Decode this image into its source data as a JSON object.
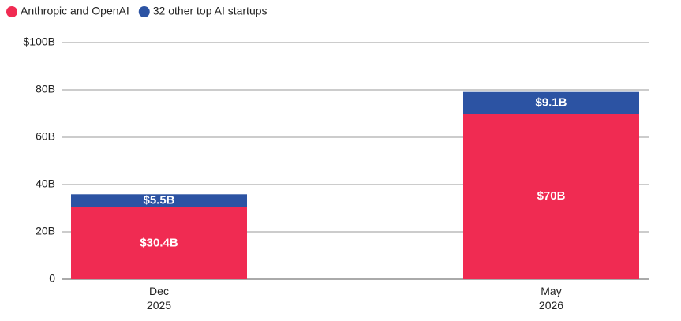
{
  "chart_data": {
    "type": "stacked_bar",
    "categories": [
      "Dec 2025",
      "May 2026"
    ],
    "series": [
      {
        "name": "Anthropic and OpenAI",
        "color": "#f02b52",
        "values": [
          30.4,
          70
        ],
        "value_labels": [
          "$30.4B",
          "$70B"
        ]
      },
      {
        "name": "32 other top AI startups",
        "color": "#2c53a3",
        "values": [
          5.5,
          9.1
        ],
        "value_labels": [
          "$5.5B",
          "$9.1B"
        ]
      }
    ],
    "ylim": [
      0,
      100
    ],
    "yticks": [
      0,
      {
        "value": 20,
        "label": "20B"
      },
      {
        "value": 40,
        "label": "40B"
      },
      {
        "value": 60,
        "label": "60B"
      },
      {
        "value": 80,
        "label": "80B"
      },
      {
        "value": 100,
        "label": "$100B"
      }
    ],
    "grid": true,
    "legend": "top-left"
  }
}
